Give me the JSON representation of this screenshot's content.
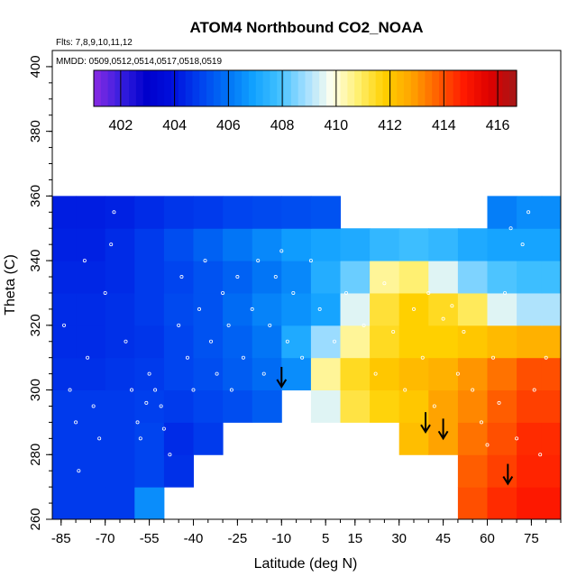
{
  "chart_data": {
    "type": "heatmap",
    "title": "ATOM4 Northbound CO2_NOAA",
    "subtitle_lines": [
      "Flts: 7,8,9,10,11,12",
      "MMDD: 0509,0512,0514,0517,0518,0519"
    ],
    "xlabel": "Latitude (deg N)",
    "ylabel": "Theta (C)",
    "xlim": [
      -88,
      85
    ],
    "ylim": [
      260,
      405
    ],
    "x_ticks": [
      -85,
      -70,
      -55,
      -40,
      -25,
      -10,
      5,
      15,
      30,
      45,
      60,
      75
    ],
    "y_ticks": [
      260,
      280,
      300,
      320,
      340,
      360,
      380,
      400
    ],
    "grid": false,
    "colorbar": {
      "placement": "top inside plot",
      "range": [
        401,
        416.7
      ],
      "ticks": [
        402,
        404,
        406,
        408,
        410,
        412,
        414,
        416
      ],
      "colors": [
        "#8a2be2",
        "#3a1fe0",
        "#0000cc",
        "#0010dd",
        "#0040ee",
        "#0070f5",
        "#10a0ff",
        "#40c0ff",
        "#a0deff",
        "#ffffee",
        "#fff070",
        "#ffd000",
        "#ffa500",
        "#ff6000",
        "#ff1a00",
        "#dd0000",
        "#a51818"
      ]
    },
    "grid_values": {
      "x": [
        -85,
        -75,
        -65,
        -55,
        -45,
        -35,
        -25,
        -15,
        -5,
        5,
        15,
        25,
        35,
        45,
        55,
        65,
        75,
        82
      ],
      "y": [
        265,
        275,
        285,
        295,
        305,
        315,
        325,
        335,
        345,
        355
      ],
      "z": [
        [
          404.8,
          404.8,
          404.8,
          406.5,
          null,
          null,
          null,
          null,
          null,
          null,
          null,
          null,
          null,
          null,
          414.0,
          414.5,
          414.8,
          414.8
        ],
        [
          404.8,
          404.8,
          404.8,
          405.0,
          404.6,
          null,
          null,
          null,
          null,
          null,
          null,
          null,
          null,
          null,
          413.8,
          414.2,
          414.6,
          414.6
        ],
        [
          404.8,
          404.8,
          404.8,
          405.0,
          404.5,
          404.8,
          null,
          null,
          null,
          null,
          null,
          null,
          412.2,
          412.8,
          413.5,
          414.0,
          414.5,
          414.5
        ],
        [
          404.8,
          404.8,
          404.8,
          404.9,
          404.8,
          405.0,
          405.2,
          405.5,
          null,
          409.5,
          411.2,
          411.7,
          412.0,
          412.8,
          413.2,
          413.8,
          414.2,
          414.2
        ],
        [
          404.6,
          404.6,
          404.7,
          404.8,
          405.0,
          405.2,
          405.5,
          405.8,
          406.5,
          410.5,
          411.5,
          412.0,
          412.3,
          412.5,
          413.0,
          413.5,
          414.0,
          414.0
        ],
        [
          404.5,
          404.5,
          404.6,
          404.7,
          405.0,
          405.3,
          405.6,
          406.0,
          407.2,
          408.8,
          410.5,
          411.5,
          411.8,
          411.8,
          412.0,
          412.3,
          412.5,
          412.5
        ],
        [
          404.5,
          404.5,
          404.6,
          404.8,
          405.1,
          405.3,
          405.8,
          406.3,
          406.6,
          407.0,
          409.5,
          411.3,
          411.8,
          411.5,
          411.0,
          409.5,
          409.0,
          409.0
        ],
        [
          404.4,
          404.4,
          404.5,
          404.8,
          405.0,
          405.3,
          405.6,
          406.0,
          406.4,
          407.3,
          408.3,
          410.5,
          410.8,
          409.5,
          408.5,
          408.0,
          407.8,
          407.8
        ],
        [
          404.3,
          404.3,
          404.5,
          404.8,
          405.2,
          405.6,
          406.0,
          406.4,
          406.8,
          407.0,
          407.2,
          407.6,
          407.8,
          407.6,
          407.2,
          407.0,
          407.0,
          407.0
        ],
        [
          404.2,
          404.2,
          404.3,
          404.5,
          404.7,
          404.8,
          405.0,
          405.1,
          405.2,
          405.3,
          null,
          null,
          null,
          null,
          null,
          406.2,
          406.5,
          406.5
        ]
      ]
    },
    "annotations": [
      {
        "type": "arrow-down",
        "lat": -10,
        "theta": 301
      },
      {
        "type": "arrow-down",
        "lat": 39,
        "theta": 287
      },
      {
        "type": "arrow-down",
        "lat": 45,
        "theta": 285
      },
      {
        "type": "arrow-down",
        "lat": 67,
        "theta": 271
      }
    ],
    "observations": [
      {
        "lat": -84,
        "theta": 320
      },
      {
        "lat": -82,
        "theta": 300
      },
      {
        "lat": -80,
        "theta": 290
      },
      {
        "lat": -79,
        "theta": 275
      },
      {
        "lat": -77,
        "theta": 340
      },
      {
        "lat": -76,
        "theta": 310
      },
      {
        "lat": -74,
        "theta": 295
      },
      {
        "lat": -72,
        "theta": 285
      },
      {
        "lat": -70,
        "theta": 330
      },
      {
        "lat": -68,
        "theta": 345
      },
      {
        "lat": -67,
        "theta": 355
      },
      {
        "lat": -63,
        "theta": 315
      },
      {
        "lat": -61,
        "theta": 300
      },
      {
        "lat": -59,
        "theta": 290
      },
      {
        "lat": -58,
        "theta": 285
      },
      {
        "lat": -56,
        "theta": 296
      },
      {
        "lat": -55,
        "theta": 305
      },
      {
        "lat": -53,
        "theta": 300
      },
      {
        "lat": -51,
        "theta": 295
      },
      {
        "lat": -50,
        "theta": 288
      },
      {
        "lat": -48,
        "theta": 280
      },
      {
        "lat": -45,
        "theta": 320
      },
      {
        "lat": -44,
        "theta": 335
      },
      {
        "lat": -42,
        "theta": 310
      },
      {
        "lat": -40,
        "theta": 300
      },
      {
        "lat": -38,
        "theta": 325
      },
      {
        "lat": -36,
        "theta": 340
      },
      {
        "lat": -34,
        "theta": 315
      },
      {
        "lat": -32,
        "theta": 305
      },
      {
        "lat": -30,
        "theta": 330
      },
      {
        "lat": -28,
        "theta": 320
      },
      {
        "lat": -27,
        "theta": 300
      },
      {
        "lat": -25,
        "theta": 335
      },
      {
        "lat": -23,
        "theta": 310
      },
      {
        "lat": -20,
        "theta": 325
      },
      {
        "lat": -18,
        "theta": 340
      },
      {
        "lat": -16,
        "theta": 305
      },
      {
        "lat": -14,
        "theta": 320
      },
      {
        "lat": -12,
        "theta": 335
      },
      {
        "lat": -10,
        "theta": 343
      },
      {
        "lat": -8,
        "theta": 315
      },
      {
        "lat": -6,
        "theta": 330
      },
      {
        "lat": -3,
        "theta": 310
      },
      {
        "lat": 0,
        "theta": 340
      },
      {
        "lat": 3,
        "theta": 325
      },
      {
        "lat": 8,
        "theta": 315
      },
      {
        "lat": 12,
        "theta": 330
      },
      {
        "lat": 18,
        "theta": 320
      },
      {
        "lat": 22,
        "theta": 305
      },
      {
        "lat": 25,
        "theta": 333
      },
      {
        "lat": 28,
        "theta": 318
      },
      {
        "lat": 32,
        "theta": 300
      },
      {
        "lat": 35,
        "theta": 325
      },
      {
        "lat": 38,
        "theta": 310
      },
      {
        "lat": 40,
        "theta": 330
      },
      {
        "lat": 42,
        "theta": 295
      },
      {
        "lat": 45,
        "theta": 322
      },
      {
        "lat": 48,
        "theta": 326
      },
      {
        "lat": 50,
        "theta": 305
      },
      {
        "lat": 52,
        "theta": 318
      },
      {
        "lat": 55,
        "theta": 300
      },
      {
        "lat": 58,
        "theta": 290
      },
      {
        "lat": 60,
        "theta": 283
      },
      {
        "lat": 62,
        "theta": 310
      },
      {
        "lat": 64,
        "theta": 296
      },
      {
        "lat": 66,
        "theta": 330
      },
      {
        "lat": 68,
        "theta": 350
      },
      {
        "lat": 70,
        "theta": 285
      },
      {
        "lat": 72,
        "theta": 345
      },
      {
        "lat": 74,
        "theta": 355
      },
      {
        "lat": 76,
        "theta": 300
      },
      {
        "lat": 78,
        "theta": 280
      },
      {
        "lat": 80,
        "theta": 310
      }
    ]
  }
}
